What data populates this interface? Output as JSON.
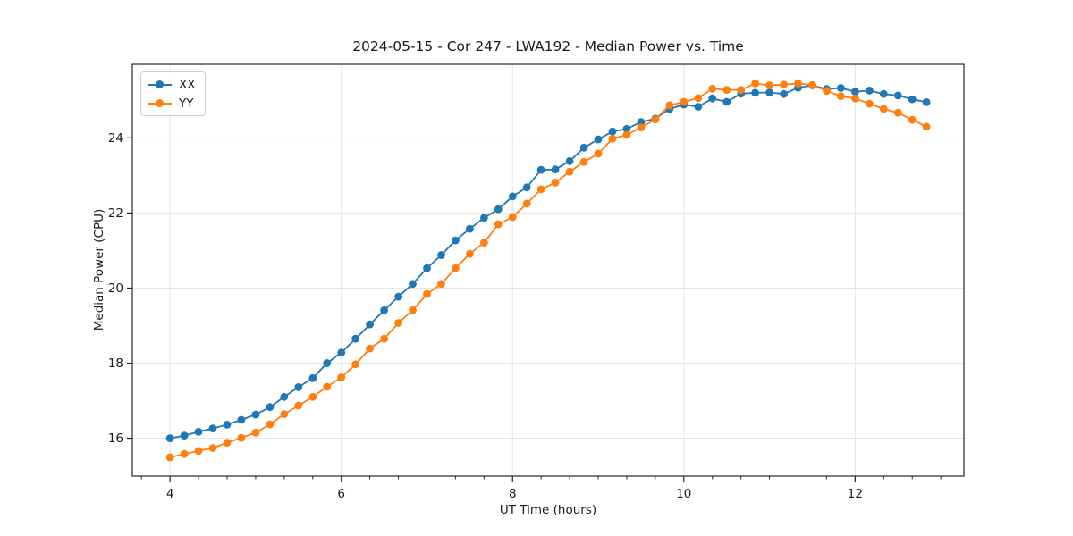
{
  "figure": {
    "kind": "static-line-plot"
  },
  "chart_data": {
    "type": "line",
    "title": "2024-05-15 - Cor 247 - LWA192 - Median Power vs. Time",
    "xlabel": "UT Time (hours)",
    "ylabel": "Median Power (CPU)",
    "xlim": [
      3.56,
      13.27
    ],
    "ylim": [
      14.99,
      25.96
    ],
    "xticks": [
      4,
      6,
      8,
      10,
      12
    ],
    "yticks": [
      16,
      18,
      20,
      22,
      24
    ],
    "x_minor_tick_step": 0.333,
    "grid": true,
    "legend_position": "upper-left",
    "marker": "circle",
    "x": [
      4.0,
      4.167,
      4.333,
      4.5,
      4.667,
      4.833,
      5.0,
      5.167,
      5.333,
      5.5,
      5.667,
      5.833,
      6.0,
      6.167,
      6.333,
      6.5,
      6.667,
      6.833,
      7.0,
      7.167,
      7.333,
      7.5,
      7.667,
      7.833,
      8.0,
      8.167,
      8.333,
      8.5,
      8.667,
      8.833,
      9.0,
      9.167,
      9.333,
      9.5,
      9.667,
      9.833,
      10.0,
      10.167,
      10.333,
      10.5,
      10.667,
      10.833,
      11.0,
      11.167,
      11.333,
      11.5,
      11.667,
      11.833,
      12.0,
      12.167,
      12.333,
      12.5,
      12.667,
      12.833
    ],
    "series": [
      {
        "name": "XX",
        "color": "#1f77b4",
        "values": [
          16.0,
          16.07,
          16.17,
          16.26,
          16.36,
          16.49,
          16.63,
          16.83,
          17.1,
          17.36,
          17.6,
          18.0,
          18.28,
          18.65,
          19.03,
          19.41,
          19.77,
          20.11,
          20.53,
          20.88,
          21.27,
          21.58,
          21.87,
          22.1,
          22.44,
          22.68,
          23.15,
          23.16,
          23.38,
          23.74,
          23.96,
          24.17,
          24.24,
          24.42,
          24.51,
          24.77,
          24.89,
          24.83,
          25.05,
          24.96,
          25.18,
          25.2,
          25.21,
          25.17,
          25.34,
          25.4,
          25.3,
          25.33,
          25.23,
          25.26,
          25.17,
          25.13,
          25.03,
          24.95
        ]
      },
      {
        "name": "YY",
        "color": "#ff7f0e",
        "values": [
          15.49,
          15.58,
          15.66,
          15.74,
          15.88,
          16.01,
          16.15,
          16.37,
          16.64,
          16.87,
          17.1,
          17.37,
          17.62,
          17.97,
          18.39,
          18.65,
          19.07,
          19.41,
          19.84,
          20.11,
          20.53,
          20.91,
          21.21,
          21.7,
          21.89,
          22.25,
          22.63,
          22.81,
          23.1,
          23.36,
          23.58,
          23.98,
          24.08,
          24.28,
          24.49,
          24.87,
          24.96,
          25.06,
          25.31,
          25.28,
          25.28,
          25.45,
          25.4,
          25.42,
          25.45,
          25.41,
          25.25,
          25.11,
          25.05,
          24.91,
          24.77,
          24.67,
          24.48,
          24.3
        ]
      }
    ],
    "style": {
      "grid_color": "#e5e5e5",
      "spine_color": "#262626",
      "tick_color": "#262626",
      "background": "#ffffff",
      "line_width": 1.8,
      "marker_radius": 4.4
    }
  }
}
